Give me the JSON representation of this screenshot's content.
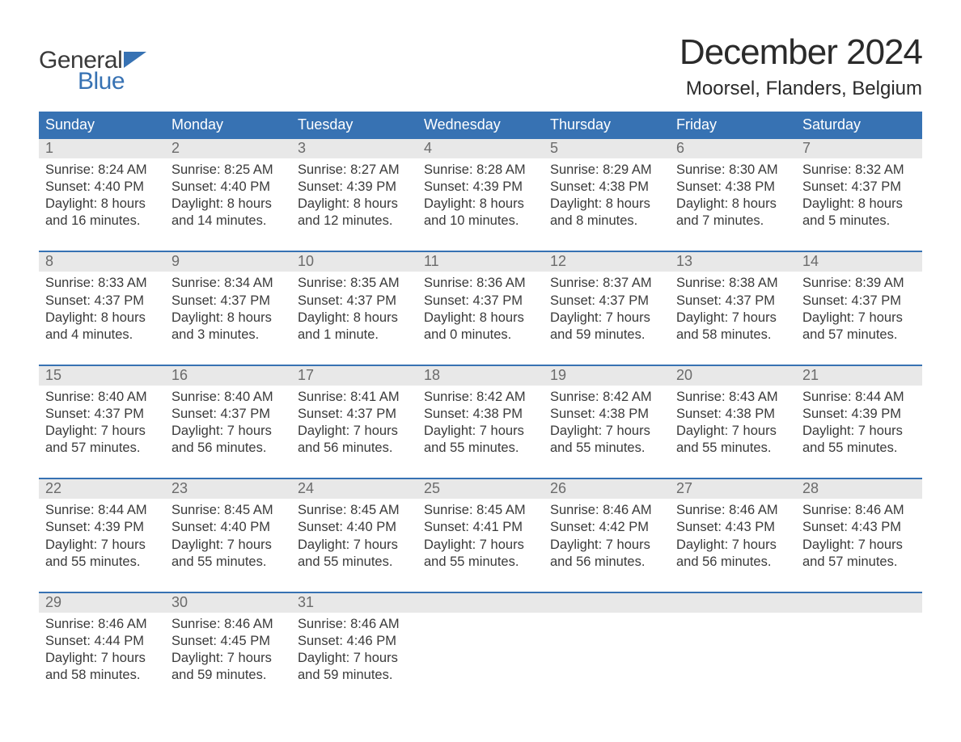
{
  "logo": {
    "general": "General",
    "blue": "Blue",
    "flag_color": "#3772b3"
  },
  "title": "December 2024",
  "subtitle": "Moorsel, Flanders, Belgium",
  "colors": {
    "header_bg": "#3772b3",
    "header_text": "#ffffff",
    "daynum_bg": "#e8e8e8",
    "daynum_text": "#6b6b6b",
    "body_text": "#3a3a3a",
    "week_border": "#3772b3",
    "page_bg": "#ffffff"
  },
  "typography": {
    "title_fontsize": 44,
    "subtitle_fontsize": 24,
    "header_fontsize": 18,
    "daynum_fontsize": 18,
    "cell_fontsize": 16.5,
    "logo_fontsize": 30
  },
  "layout": {
    "columns": 7,
    "rows": 5,
    "cell_lines": 4
  },
  "weekdays": [
    "Sunday",
    "Monday",
    "Tuesday",
    "Wednesday",
    "Thursday",
    "Friday",
    "Saturday"
  ],
  "weeks": [
    [
      {
        "day": "1",
        "sunrise": "Sunrise: 8:24 AM",
        "sunset": "Sunset: 4:40 PM",
        "d1": "Daylight: 8 hours",
        "d2": "and 16 minutes."
      },
      {
        "day": "2",
        "sunrise": "Sunrise: 8:25 AM",
        "sunset": "Sunset: 4:40 PM",
        "d1": "Daylight: 8 hours",
        "d2": "and 14 minutes."
      },
      {
        "day": "3",
        "sunrise": "Sunrise: 8:27 AM",
        "sunset": "Sunset: 4:39 PM",
        "d1": "Daylight: 8 hours",
        "d2": "and 12 minutes."
      },
      {
        "day": "4",
        "sunrise": "Sunrise: 8:28 AM",
        "sunset": "Sunset: 4:39 PM",
        "d1": "Daylight: 8 hours",
        "d2": "and 10 minutes."
      },
      {
        "day": "5",
        "sunrise": "Sunrise: 8:29 AM",
        "sunset": "Sunset: 4:38 PM",
        "d1": "Daylight: 8 hours",
        "d2": "and 8 minutes."
      },
      {
        "day": "6",
        "sunrise": "Sunrise: 8:30 AM",
        "sunset": "Sunset: 4:38 PM",
        "d1": "Daylight: 8 hours",
        "d2": "and 7 minutes."
      },
      {
        "day": "7",
        "sunrise": "Sunrise: 8:32 AM",
        "sunset": "Sunset: 4:37 PM",
        "d1": "Daylight: 8 hours",
        "d2": "and 5 minutes."
      }
    ],
    [
      {
        "day": "8",
        "sunrise": "Sunrise: 8:33 AM",
        "sunset": "Sunset: 4:37 PM",
        "d1": "Daylight: 8 hours",
        "d2": "and 4 minutes."
      },
      {
        "day": "9",
        "sunrise": "Sunrise: 8:34 AM",
        "sunset": "Sunset: 4:37 PM",
        "d1": "Daylight: 8 hours",
        "d2": "and 3 minutes."
      },
      {
        "day": "10",
        "sunrise": "Sunrise: 8:35 AM",
        "sunset": "Sunset: 4:37 PM",
        "d1": "Daylight: 8 hours",
        "d2": "and 1 minute."
      },
      {
        "day": "11",
        "sunrise": "Sunrise: 8:36 AM",
        "sunset": "Sunset: 4:37 PM",
        "d1": "Daylight: 8 hours",
        "d2": "and 0 minutes."
      },
      {
        "day": "12",
        "sunrise": "Sunrise: 8:37 AM",
        "sunset": "Sunset: 4:37 PM",
        "d1": "Daylight: 7 hours",
        "d2": "and 59 minutes."
      },
      {
        "day": "13",
        "sunrise": "Sunrise: 8:38 AM",
        "sunset": "Sunset: 4:37 PM",
        "d1": "Daylight: 7 hours",
        "d2": "and 58 minutes."
      },
      {
        "day": "14",
        "sunrise": "Sunrise: 8:39 AM",
        "sunset": "Sunset: 4:37 PM",
        "d1": "Daylight: 7 hours",
        "d2": "and 57 minutes."
      }
    ],
    [
      {
        "day": "15",
        "sunrise": "Sunrise: 8:40 AM",
        "sunset": "Sunset: 4:37 PM",
        "d1": "Daylight: 7 hours",
        "d2": "and 57 minutes."
      },
      {
        "day": "16",
        "sunrise": "Sunrise: 8:40 AM",
        "sunset": "Sunset: 4:37 PM",
        "d1": "Daylight: 7 hours",
        "d2": "and 56 minutes."
      },
      {
        "day": "17",
        "sunrise": "Sunrise: 8:41 AM",
        "sunset": "Sunset: 4:37 PM",
        "d1": "Daylight: 7 hours",
        "d2": "and 56 minutes."
      },
      {
        "day": "18",
        "sunrise": "Sunrise: 8:42 AM",
        "sunset": "Sunset: 4:38 PM",
        "d1": "Daylight: 7 hours",
        "d2": "and 55 minutes."
      },
      {
        "day": "19",
        "sunrise": "Sunrise: 8:42 AM",
        "sunset": "Sunset: 4:38 PM",
        "d1": "Daylight: 7 hours",
        "d2": "and 55 minutes."
      },
      {
        "day": "20",
        "sunrise": "Sunrise: 8:43 AM",
        "sunset": "Sunset: 4:38 PM",
        "d1": "Daylight: 7 hours",
        "d2": "and 55 minutes."
      },
      {
        "day": "21",
        "sunrise": "Sunrise: 8:44 AM",
        "sunset": "Sunset: 4:39 PM",
        "d1": "Daylight: 7 hours",
        "d2": "and 55 minutes."
      }
    ],
    [
      {
        "day": "22",
        "sunrise": "Sunrise: 8:44 AM",
        "sunset": "Sunset: 4:39 PM",
        "d1": "Daylight: 7 hours",
        "d2": "and 55 minutes."
      },
      {
        "day": "23",
        "sunrise": "Sunrise: 8:45 AM",
        "sunset": "Sunset: 4:40 PM",
        "d1": "Daylight: 7 hours",
        "d2": "and 55 minutes."
      },
      {
        "day": "24",
        "sunrise": "Sunrise: 8:45 AM",
        "sunset": "Sunset: 4:40 PM",
        "d1": "Daylight: 7 hours",
        "d2": "and 55 minutes."
      },
      {
        "day": "25",
        "sunrise": "Sunrise: 8:45 AM",
        "sunset": "Sunset: 4:41 PM",
        "d1": "Daylight: 7 hours",
        "d2": "and 55 minutes."
      },
      {
        "day": "26",
        "sunrise": "Sunrise: 8:46 AM",
        "sunset": "Sunset: 4:42 PM",
        "d1": "Daylight: 7 hours",
        "d2": "and 56 minutes."
      },
      {
        "day": "27",
        "sunrise": "Sunrise: 8:46 AM",
        "sunset": "Sunset: 4:43 PM",
        "d1": "Daylight: 7 hours",
        "d2": "and 56 minutes."
      },
      {
        "day": "28",
        "sunrise": "Sunrise: 8:46 AM",
        "sunset": "Sunset: 4:43 PM",
        "d1": "Daylight: 7 hours",
        "d2": "and 57 minutes."
      }
    ],
    [
      {
        "day": "29",
        "sunrise": "Sunrise: 8:46 AM",
        "sunset": "Sunset: 4:44 PM",
        "d1": "Daylight: 7 hours",
        "d2": "and 58 minutes."
      },
      {
        "day": "30",
        "sunrise": "Sunrise: 8:46 AM",
        "sunset": "Sunset: 4:45 PM",
        "d1": "Daylight: 7 hours",
        "d2": "and 59 minutes."
      },
      {
        "day": "31",
        "sunrise": "Sunrise: 8:46 AM",
        "sunset": "Sunset: 4:46 PM",
        "d1": "Daylight: 7 hours",
        "d2": "and 59 minutes."
      },
      null,
      null,
      null,
      null
    ]
  ]
}
